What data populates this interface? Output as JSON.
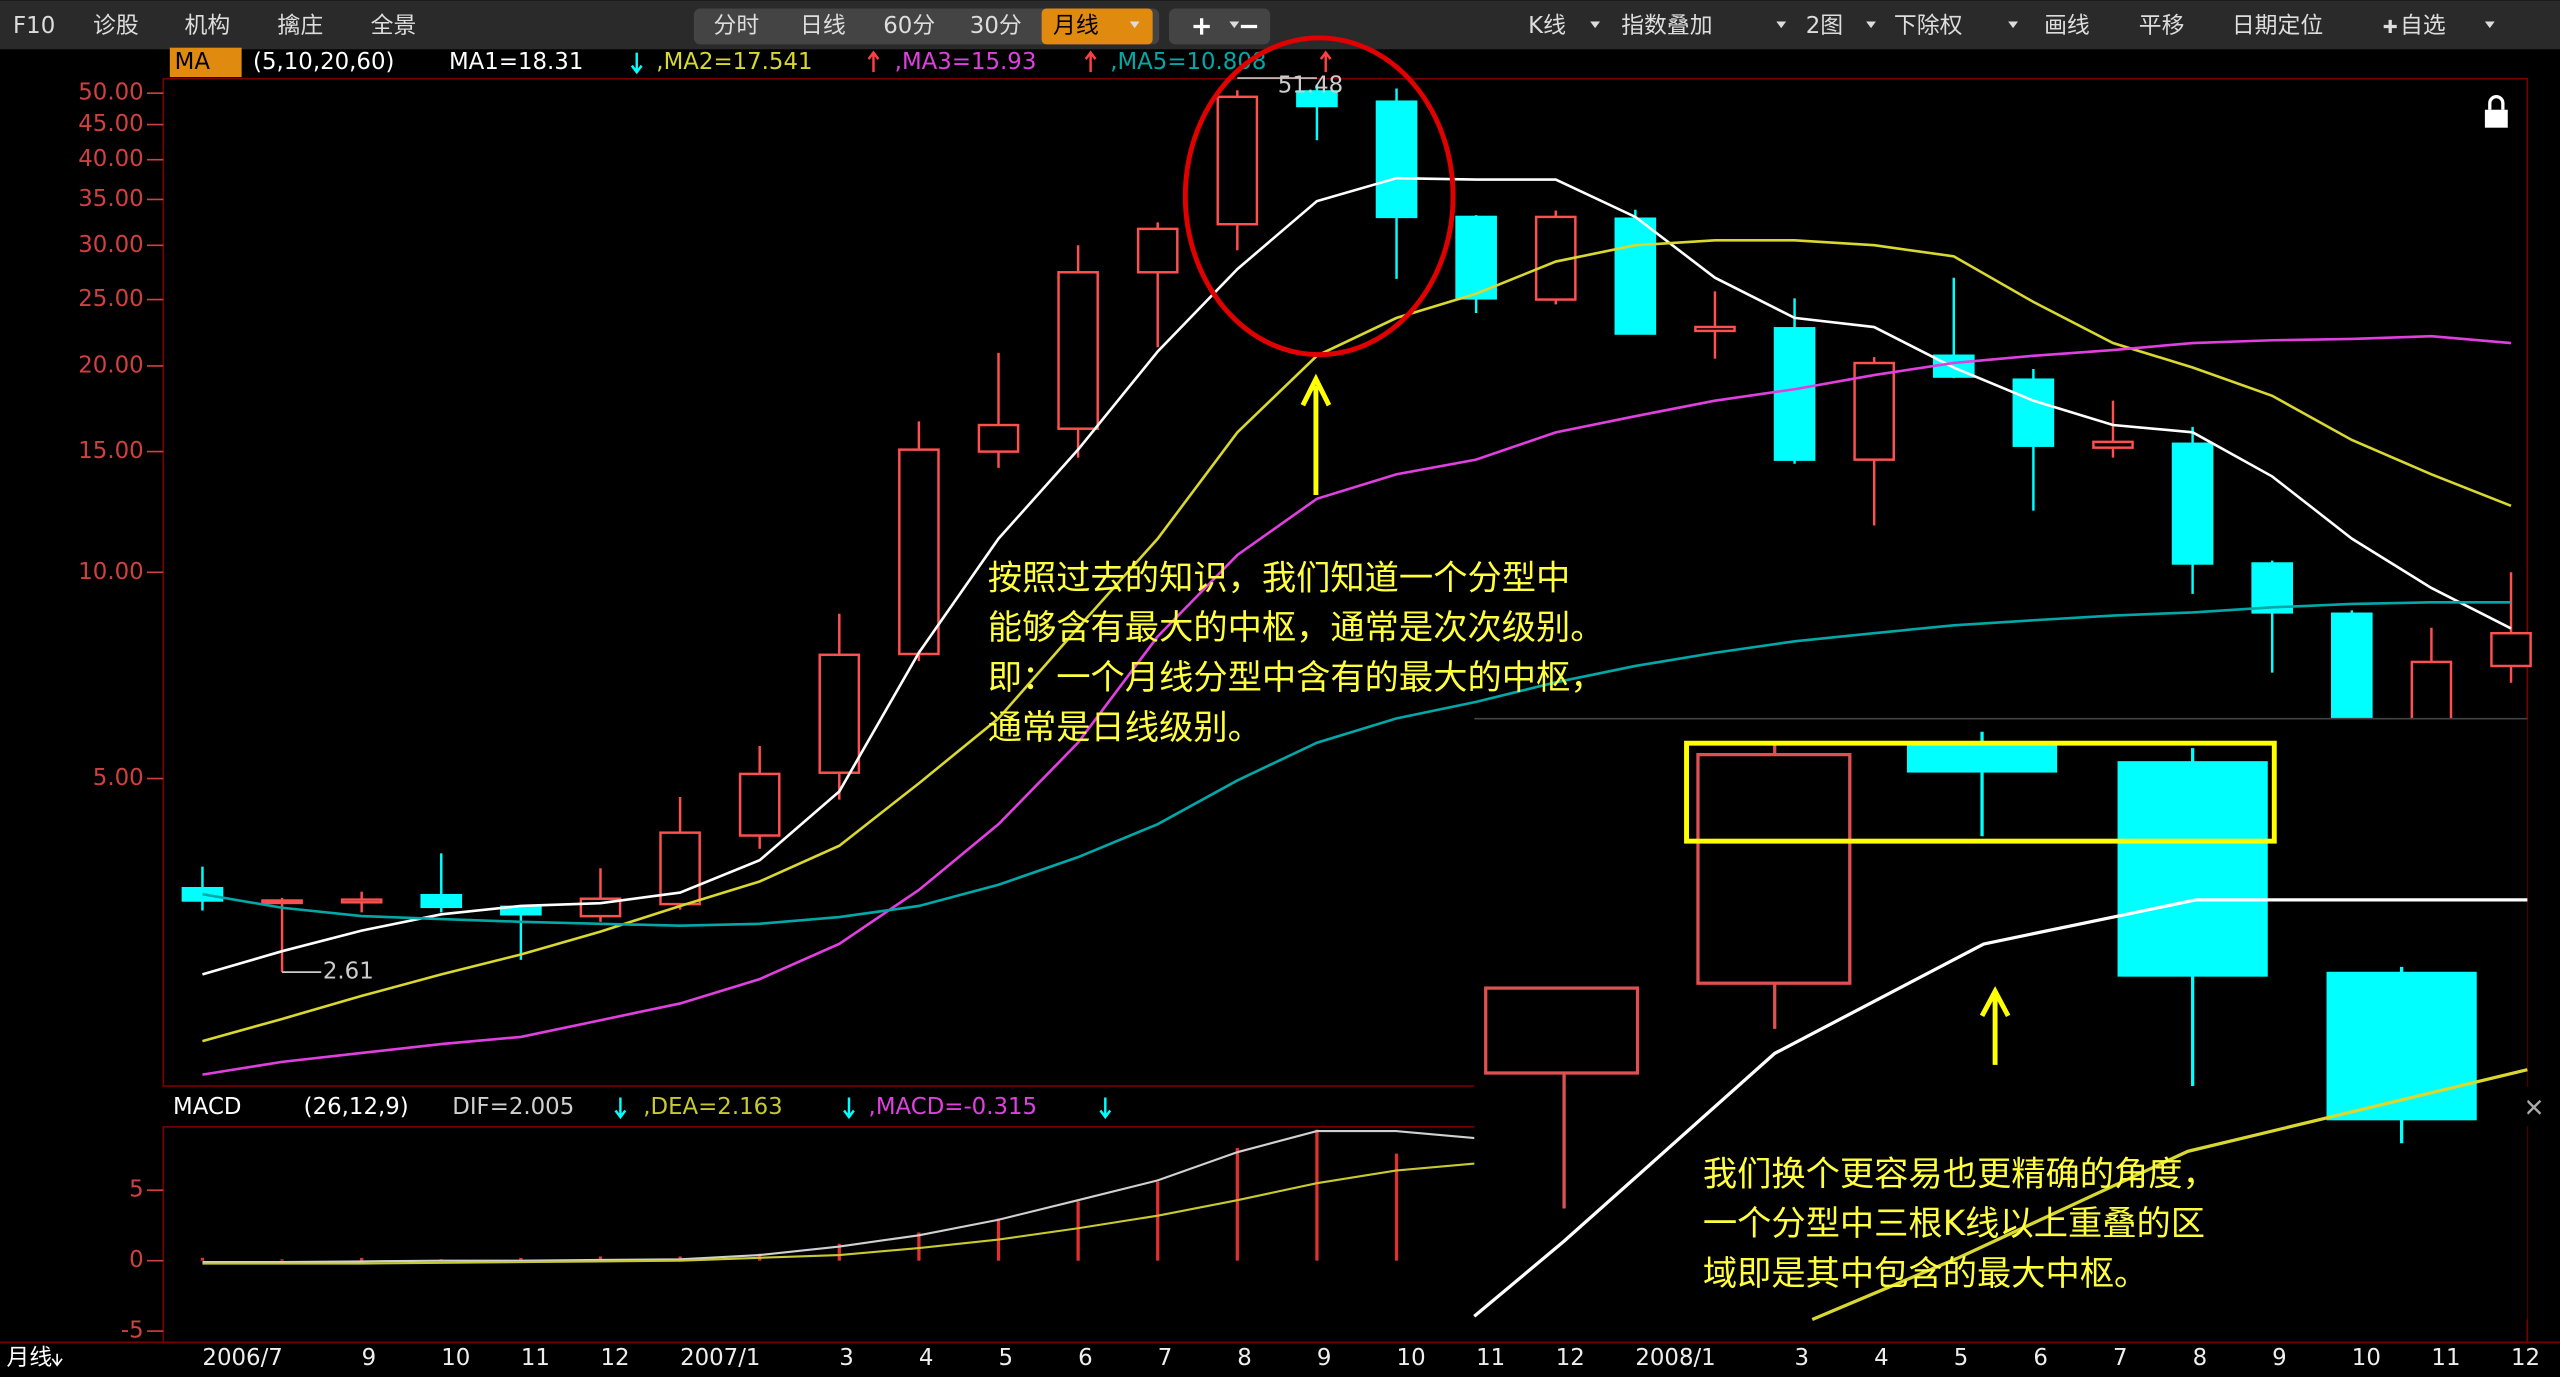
{
  "toolbar": {
    "left": [
      "F10",
      "诊股",
      "机构",
      "擒庄",
      "全景"
    ],
    "periods": [
      "分时",
      "日线",
      "60分",
      "30分",
      "月线"
    ],
    "right": [
      "K线",
      "指数叠加",
      "2图",
      "下除权",
      "画线",
      "平移",
      "日期定位",
      "自选"
    ]
  },
  "period_label": "月线",
  "chart_data": [
    {
      "type": "candlestick",
      "title": "MA",
      "params": "(5,10,20,60)",
      "y_scale": "log",
      "categories": [
        "2006/7",
        null,
        "9",
        "10",
        "11",
        "12",
        "2007/1",
        null,
        "3",
        "4",
        "5",
        "6",
        "7",
        "8",
        "9",
        "10",
        "11",
        "12",
        "2008/1",
        null,
        "3",
        "4",
        "5",
        "6",
        "7",
        "8",
        "9",
        "10",
        "11",
        "12"
      ],
      "open": [
        3.46,
        3.3,
        3.3,
        3.38,
        3.25,
        3.15,
        3.28,
        4.13,
        5.1,
        7.6,
        15.0,
        16.2,
        27.4,
        32.2,
        50.3,
        48.6,
        33.0,
        25.0,
        32.8,
        22.5,
        22.7,
        14.6,
        20.7,
        19.1,
        15.2,
        15.4,
        10.3,
        8.7,
        5.8,
        7.3
      ],
      "high": [
        3.72,
        3.35,
        3.42,
        3.89,
        3.26,
        3.7,
        4.7,
        5.58,
        8.7,
        16.6,
        20.9,
        30.0,
        32.4,
        50.5,
        51.48,
        50.8,
        33.2,
        33.7,
        33.8,
        25.7,
        25.1,
        20.6,
        26.9,
        19.8,
        17.8,
        16.3,
        10.4,
        8.8,
        8.3,
        10.0
      ],
      "low": [
        3.21,
        2.61,
        3.19,
        3.19,
        2.72,
        3.09,
        3.22,
        3.95,
        4.66,
        7.42,
        14.2,
        14.7,
        21.3,
        29.5,
        42.7,
        26.8,
        23.9,
        24.6,
        22.3,
        20.5,
        14.4,
        11.7,
        19.2,
        12.3,
        14.7,
        9.3,
        7.14,
        5.5,
        5.6,
        6.9
      ],
      "close": [
        3.32,
        3.32,
        3.33,
        3.25,
        3.17,
        3.34,
        4.17,
        5.08,
        7.58,
        15.1,
        16.4,
        27.4,
        31.7,
        49.4,
        47.9,
        33.0,
        25.1,
        33.0,
        22.3,
        22.8,
        14.6,
        20.2,
        19.3,
        15.3,
        15.5,
        10.3,
        8.74,
        5.9,
        7.4,
        8.15
      ],
      "up_color": "#ff5050",
      "down_color": "#00ffff",
      "series": [
        {
          "name": "MA1=18.31",
          "color": "#ffffff",
          "values": [
            2.59,
            2.8,
            3.0,
            3.17,
            3.26,
            3.29,
            3.41,
            3.8,
            4.79,
            7.63,
            11.2,
            15.1,
            21.0,
            27.7,
            34.8,
            37.6,
            37.4,
            37.4,
            33.0,
            26.9,
            23.5,
            22.8,
            19.9,
            17.8,
            16.4,
            16.0,
            13.8,
            11.2,
            9.49,
            8.28
          ]
        },
        {
          "name": ",MA2=17.541",
          "color": "#d8d830",
          "values": [
            2.07,
            2.23,
            2.41,
            2.59,
            2.77,
            2.99,
            3.26,
            3.54,
            3.99,
            4.92,
            6.12,
            8.3,
            11.2,
            16.0,
            20.7,
            23.5,
            25.5,
            28.4,
            30.0,
            30.5,
            30.5,
            30.0,
            28.9,
            24.8,
            21.6,
            19.9,
            18.1,
            15.6,
            13.9,
            12.5
          ]
        },
        {
          "name": ",MA3=15.93",
          "color": "#e040e0",
          "values": [
            1.85,
            1.93,
            1.99,
            2.05,
            2.1,
            2.22,
            2.35,
            2.55,
            2.87,
            3.44,
            4.29,
            5.64,
            8.06,
            10.6,
            12.8,
            13.9,
            14.6,
            16.0,
            16.9,
            17.8,
            18.5,
            19.4,
            20.2,
            20.7,
            21.1,
            21.6,
            21.8,
            21.9,
            22.1,
            21.6
          ]
        },
        {
          "name": ",MA5=10.808",
          "color": "#00a8a8",
          "values": [
            3.39,
            3.24,
            3.15,
            3.12,
            3.09,
            3.07,
            3.05,
            3.07,
            3.14,
            3.26,
            3.5,
            3.84,
            4.29,
            4.97,
            5.64,
            6.12,
            6.47,
            6.91,
            7.3,
            7.63,
            7.93,
            8.15,
            8.37,
            8.51,
            8.65,
            8.74,
            8.89,
            8.99,
            9.04,
            9.04
          ]
        }
      ],
      "ylim": [
        1.78,
        52.5
      ],
      "yticks": [
        {
          "value": 50,
          "label": "50.00"
        },
        {
          "value": 45,
          "label": "45.00"
        },
        {
          "value": 40,
          "label": "40.00"
        },
        {
          "value": 35,
          "label": "35.00"
        },
        {
          "value": 30,
          "label": "30.00"
        },
        {
          "value": 25,
          "label": "25.00"
        },
        {
          "value": 20,
          "label": "20.00"
        },
        {
          "value": 15,
          "label": "15.00"
        },
        {
          "value": 10,
          "label": "10.00"
        },
        {
          "value": 5,
          "label": "5.00"
        }
      ]
    },
    {
      "type": "macd",
      "title": "MACD",
      "params": "(26,12,9)",
      "series": [
        {
          "name": "DIF=2.005",
          "color": "#d0d0d0",
          "values": [
            -0.1,
            -0.1,
            -0.05,
            0,
            0,
            0.05,
            0.1,
            0.4,
            1.0,
            1.8,
            2.9,
            4.3,
            5.7,
            7.7,
            9.2,
            9.2,
            8.7,
            null,
            null,
            null,
            null,
            null,
            null,
            null,
            null,
            null,
            null,
            null,
            null,
            null
          ]
        },
        {
          "name": ",DEA=2.163",
          "color": "#c8c830",
          "values": [
            -0.2,
            -0.2,
            -0.2,
            -0.15,
            -0.1,
            -0.05,
            0,
            0.2,
            0.4,
            0.9,
            1.5,
            2.3,
            3.2,
            4.3,
            5.5,
            6.4,
            6.9,
            null,
            null,
            null,
            null,
            null,
            null,
            null,
            null,
            null,
            null,
            null,
            null,
            null
          ]
        },
        {
          "name": ",MACD=-0.315",
          "color": "#e040e0",
          "bar_color": "#e03030",
          "values": [
            0.2,
            0.1,
            0.2,
            0.1,
            0.2,
            0.3,
            0.3,
            0.5,
            1.2,
            2.0,
            3.0,
            4.2,
            5.6,
            8.0,
            9.3,
            7.6,
            null,
            null,
            null,
            null,
            null,
            null,
            null,
            null,
            null,
            null,
            null,
            null,
            null,
            null
          ]
        }
      ],
      "ylim": [
        -5.8,
        9.5
      ],
      "yticks": [
        5,
        0,
        -5
      ]
    }
  ],
  "annotations": [
    {
      "lines": [
        "按照过去的知识，我们知道一个分型中",
        "能够含有最大的中枢，通常是次次级别。",
        "即：一个月线分型中含有的最大的中枢，",
        "通常是日线级别。"
      ]
    },
    {
      "lines": [
        "我们换个更容易也更精确的角度，",
        "一个分型中三根K线以上重叠的区",
        "域即是其中包含的最大中枢。"
      ]
    }
  ]
}
